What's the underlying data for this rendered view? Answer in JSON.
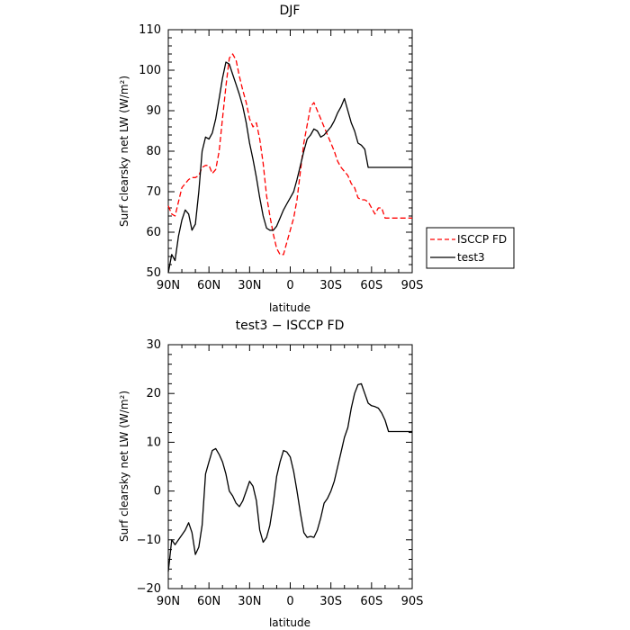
{
  "chart_data": [
    {
      "type": "line",
      "title": "DJF",
      "xlabel": "latitude",
      "ylabel": "Surf clearsky net LW (W/m²)",
      "xlim": [
        90,
        -90
      ],
      "ylim": [
        50,
        110
      ],
      "x_ticks": [
        90,
        60,
        30,
        0,
        -30,
        -60,
        -90
      ],
      "x_tick_labels": [
        "90N",
        "60N",
        "30N",
        "0",
        "30S",
        "60S",
        "90S"
      ],
      "y_ticks": [
        50,
        60,
        70,
        80,
        90,
        100,
        110
      ],
      "y_tick_labels": [
        "50",
        "60",
        "70",
        "80",
        "90",
        "100",
        "110"
      ],
      "legend_position": "right",
      "series": [
        {
          "name": "ISCCP FD",
          "color": "#ff0000",
          "dash": "dashed",
          "x": [
            90,
            87.5,
            85,
            82.5,
            80,
            77.5,
            75,
            72.5,
            70,
            67.5,
            65,
            62.5,
            60,
            57.5,
            55,
            52.5,
            50,
            47.5,
            45,
            42.5,
            40,
            37.5,
            35,
            32.5,
            30,
            27.5,
            25,
            22.5,
            20,
            17.5,
            15,
            12.5,
            10,
            7.5,
            5,
            2.5,
            0,
            -2.5,
            -5,
            -7.5,
            -10,
            -12.5,
            -15,
            -17.5,
            -20,
            -22.5,
            -25,
            -27.5,
            -30,
            -32.5,
            -35,
            -37.5,
            -40,
            -42.5,
            -45,
            -47.5,
            -50,
            -52.5,
            -55,
            -57.5,
            -60,
            -62.5,
            -65,
            -67.5,
            -70,
            -72.5,
            -75,
            -77.5,
            -80,
            -82.5,
            -85,
            -87.5,
            -90
          ],
          "y": [
            66.5,
            64.5,
            64,
            67.5,
            71,
            72,
            73,
            73.5,
            73.5,
            74,
            76,
            76.5,
            76.5,
            74.5,
            75.5,
            80,
            88,
            96,
            103,
            104,
            102.5,
            98.5,
            95,
            92,
            88,
            86,
            87,
            83,
            77,
            69,
            64,
            59.5,
            56,
            54.5,
            54.5,
            57.5,
            60.5,
            63.5,
            68,
            75,
            82,
            86.5,
            91,
            92,
            90,
            88,
            86,
            84,
            82,
            80,
            77.5,
            76,
            75,
            74,
            72,
            71,
            68.5,
            68,
            68,
            67.5,
            66,
            64.5,
            66,
            66,
            63.5,
            63.5,
            63.5,
            63.5,
            63.5,
            63.5,
            63.5,
            63.5,
            63.5
          ]
        },
        {
          "name": "test3",
          "color": "#000000",
          "dash": "solid",
          "x": [
            90,
            87.5,
            85,
            82.5,
            80,
            77.5,
            75,
            72.5,
            70,
            67.5,
            65,
            62.5,
            60,
            57.5,
            55,
            52.5,
            50,
            47.5,
            45,
            42.5,
            40,
            37.5,
            35,
            32.5,
            30,
            27.5,
            25,
            22.5,
            20,
            17.5,
            15,
            12.5,
            10,
            7.5,
            5,
            2.5,
            0,
            -2.5,
            -5,
            -7.5,
            -10,
            -12.5,
            -15,
            -17.5,
            -20,
            -22.5,
            -25,
            -27.5,
            -30,
            -32.5,
            -35,
            -37.5,
            -40,
            -42.5,
            -45,
            -47.5,
            -50,
            -52.5,
            -55,
            -57.5,
            -60,
            -62.5,
            -65,
            -67.5,
            -70,
            -72.5,
            -75,
            -77.5,
            -80,
            -82.5,
            -85,
            -87.5,
            -90
          ],
          "y": [
            50,
            54.5,
            53,
            59,
            63,
            65.5,
            64.5,
            60.5,
            62,
            70,
            80,
            83.5,
            83,
            84.5,
            88,
            93,
            98,
            102,
            101.5,
            99,
            96.5,
            94,
            91,
            87,
            82,
            78,
            73.5,
            68.5,
            64,
            61,
            60.5,
            60.5,
            61.5,
            63.5,
            65.5,
            67,
            68.5,
            70,
            73,
            76.5,
            80,
            83,
            84,
            85.5,
            85,
            83.5,
            84,
            85,
            86,
            87.5,
            89.5,
            91,
            93,
            90,
            87,
            85,
            82,
            81.5,
            80.5,
            76,
            76,
            76,
            76,
            76,
            76,
            76,
            76,
            76,
            76,
            76,
            76,
            76,
            76
          ]
        }
      ]
    },
    {
      "type": "line",
      "title": "test3 − ISCCP FD",
      "xlabel": "latitude",
      "ylabel": "Surf clearsky net LW (W/m²)",
      "xlim": [
        90,
        -90
      ],
      "ylim": [
        -20,
        30
      ],
      "x_ticks": [
        90,
        60,
        30,
        0,
        -30,
        -60,
        -90
      ],
      "x_tick_labels": [
        "90N",
        "60N",
        "30N",
        "0",
        "30S",
        "60S",
        "90S"
      ],
      "y_ticks": [
        -20,
        -10,
        0,
        10,
        20,
        30
      ],
      "y_tick_labels": [
        "−20",
        "−10",
        "0",
        "10",
        "20",
        "30"
      ],
      "series": [
        {
          "name": "",
          "color": "#000000",
          "dash": "solid",
          "x": [
            90,
            87.5,
            85,
            82.5,
            80,
            77.5,
            75,
            72.5,
            70,
            67.5,
            65,
            62.5,
            60,
            57.5,
            55,
            52.5,
            50,
            47.5,
            45,
            42.5,
            40,
            37.5,
            35,
            32.5,
            30,
            27.5,
            25,
            22.5,
            20,
            17.5,
            15,
            12.5,
            10,
            7.5,
            5,
            2.5,
            0,
            -2.5,
            -5,
            -7.5,
            -10,
            -12.5,
            -15,
            -17.5,
            -20,
            -22.5,
            -25,
            -27.5,
            -30,
            -32.5,
            -35,
            -37.5,
            -40,
            -42.5,
            -45,
            -47.5,
            -50,
            -52.5,
            -55,
            -57.5,
            -60,
            -62.5,
            -65,
            -67.5,
            -70,
            -72.5,
            -75,
            -77.5,
            -80,
            -82.5,
            -85,
            -87.5,
            -90
          ],
          "y": [
            -16.5,
            -10,
            -11,
            -10,
            -9,
            -8,
            -6.5,
            -8.5,
            -13,
            -11.5,
            -7,
            3.5,
            6,
            8.3,
            8.7,
            7.5,
            6,
            3.5,
            0,
            -1,
            -2.5,
            -3.2,
            -2,
            0,
            2,
            1,
            -2,
            -8,
            -10.5,
            -9.5,
            -7,
            -2.5,
            3,
            6,
            8.3,
            8,
            7,
            4,
            0,
            -4.5,
            -8.5,
            -9.5,
            -9.3,
            -9.5,
            -8,
            -5.5,
            -2.5,
            -1.5,
            0,
            2,
            5,
            8,
            11,
            13,
            17,
            20,
            21.8,
            22,
            20,
            18,
            17.5,
            17.3,
            17,
            16,
            14.5,
            12.2,
            12.2,
            12.2,
            12.2,
            12.2,
            12.2,
            12.2,
            12.2
          ]
        }
      ]
    }
  ]
}
